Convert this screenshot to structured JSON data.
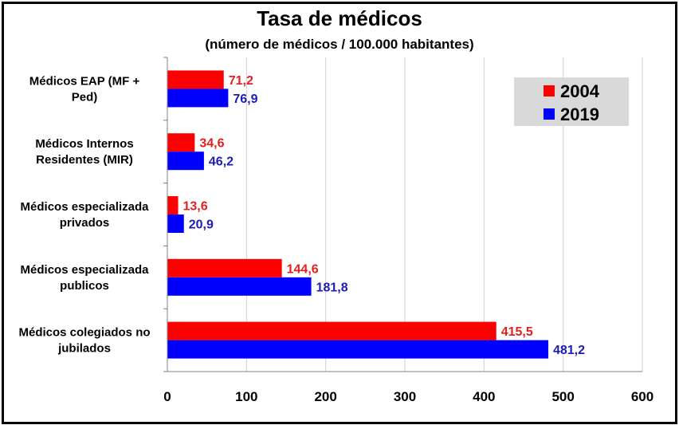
{
  "chart_data": {
    "type": "bar",
    "orientation": "horizontal",
    "title": "Tasa de médicos",
    "subtitle": "(número de médicos /  100.000 habitantes)",
    "categories": [
      [
        "Médicos EAP (MF +",
        "Ped)"
      ],
      [
        "Médicos Internos",
        "Residentes (MIR)"
      ],
      [
        "Médicos especializada",
        "privados"
      ],
      [
        "Médicos especializada",
        "publicos"
      ],
      [
        "Médicos colegiados no",
        "jubilados"
      ]
    ],
    "series": [
      {
        "name": "2004",
        "color": "#ff0000",
        "label_color": "#e02020",
        "values": [
          71.2,
          34.6,
          13.6,
          144.6,
          415.5
        ],
        "labels": [
          "71,2",
          "34,6",
          "13,6",
          "144,6",
          "415,5"
        ]
      },
      {
        "name": "2019",
        "color": "#0000ff",
        "label_color": "#1c1cb4",
        "values": [
          76.9,
          46.2,
          20.9,
          181.8,
          481.2
        ],
        "labels": [
          "76,9",
          "46,2",
          "20,9",
          "181,8",
          "481,2"
        ]
      }
    ],
    "xlim": [
      0,
      600
    ],
    "xticks": [
      0,
      100,
      200,
      300,
      400,
      500,
      600
    ],
    "grid": true,
    "legend_position": "top-right"
  }
}
